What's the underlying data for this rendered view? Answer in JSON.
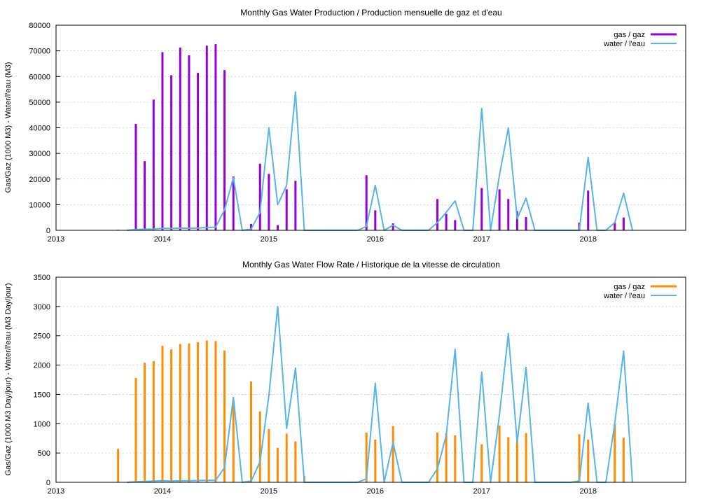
{
  "colors": {
    "gas_production": "#9400d3",
    "gas_rate": "#ff8c00",
    "water": "#56b4e9",
    "grid": "#c8c8c8",
    "frame": "#000000"
  },
  "chart_data": [
    {
      "type": "bar",
      "title": "Monthly Gas  Water Production / Production mensuelle de gaz et d'eau",
      "ylabel": "Gas/Gaz (1000 M3) - Water/l'eau (M3)",
      "xlabel": "",
      "xlim": [
        "2013-01-01",
        "2018-12-01"
      ],
      "ylim": [
        0,
        80000
      ],
      "yticks": [
        "0",
        "10000",
        "20000",
        "30000",
        "40000",
        "50000",
        "60000",
        "70000",
        "80000"
      ],
      "xticks": [
        "2013",
        "2014",
        "2015",
        "2016",
        "2017",
        "2018"
      ],
      "grid": true,
      "legend_position": "top-right",
      "series": [
        {
          "name": "gas / gaz",
          "style": "impulses",
          "x": [
            "2013-08-01",
            "2013-10-01",
            "2013-11-01",
            "2013-12-01",
            "2014-01-01",
            "2014-02-01",
            "2014-03-01",
            "2014-04-01",
            "2014-05-01",
            "2014-06-01",
            "2014-07-01",
            "2014-08-01",
            "2014-09-01",
            "2014-11-01",
            "2014-12-01",
            "2015-01-01",
            "2015-02-01",
            "2015-03-01",
            "2015-04-01",
            "2015-12-01",
            "2016-01-01",
            "2016-03-01",
            "2016-08-01",
            "2016-09-01",
            "2016-10-01",
            "2017-01-01",
            "2017-03-01",
            "2017-04-01",
            "2017-05-01",
            "2017-06-01",
            "2017-12-01",
            "2018-01-01",
            "2018-04-01",
            "2018-05-01"
          ],
          "values": [
            200,
            41500,
            27000,
            51000,
            69500,
            60500,
            71300,
            68300,
            61400,
            72000,
            72600,
            62500,
            21000,
            2500,
            26000,
            22000,
            2000,
            16000,
            19300,
            21500,
            7800,
            2700,
            12200,
            6400,
            4000,
            16500,
            16000,
            12200,
            7500,
            5200,
            3000,
            15500,
            3000,
            5000
          ]
        },
        {
          "name": "water / l'eau",
          "style": "line",
          "x": [
            "2013-09-01",
            "2013-10-01",
            "2013-11-01",
            "2013-12-01",
            "2014-01-01",
            "2014-02-01",
            "2014-03-01",
            "2014-04-01",
            "2014-05-01",
            "2014-06-01",
            "2014-07-01",
            "2014-08-01",
            "2014-09-01",
            "2014-10-01",
            "2014-11-01",
            "2014-12-01",
            "2015-01-01",
            "2015-02-01",
            "2015-03-01",
            "2015-04-01",
            "2015-05-01",
            "2015-11-01",
            "2015-12-01",
            "2016-01-01",
            "2016-02-01",
            "2016-03-01",
            "2016-04-01",
            "2016-07-01",
            "2016-08-01",
            "2016-09-01",
            "2016-10-01",
            "2016-11-01",
            "2016-12-01",
            "2017-01-01",
            "2017-02-01",
            "2017-03-01",
            "2017-04-01",
            "2017-05-01",
            "2017-06-01",
            "2017-07-01",
            "2017-11-01",
            "2017-12-01",
            "2018-01-01",
            "2018-02-01",
            "2018-03-01",
            "2018-04-01",
            "2018-05-01",
            "2018-06-01"
          ],
          "values": [
            0,
            300,
            400,
            500,
            800,
            700,
            900,
            800,
            900,
            1100,
            1200,
            8000,
            20500,
            0,
            500,
            7000,
            40000,
            10000,
            17500,
            54000,
            0,
            0,
            1500,
            17500,
            0,
            2000,
            0,
            0,
            3000,
            7000,
            11500,
            0,
            0,
            47500,
            0,
            21500,
            40000,
            4500,
            12500,
            0,
            0,
            0,
            28500,
            0,
            0,
            3000,
            14500,
            0
          ]
        }
      ]
    },
    {
      "type": "bar",
      "title": "Monthly Gas  Water Flow Rate / Historique de la vitesse de circulation",
      "ylabel": "Gas/Gaz (1000 M3 Day/jour) - Water/l'eau (M3 Day/jour)",
      "xlabel": "",
      "xlim": [
        "2013-01-01",
        "2018-12-01"
      ],
      "ylim": [
        0,
        3500
      ],
      "yticks": [
        "0",
        "500",
        "1000",
        "1500",
        "2000",
        "2500",
        "3000",
        "3500"
      ],
      "xticks": [
        "2013",
        "2014",
        "2015",
        "2016",
        "2017",
        "2018"
      ],
      "grid": true,
      "legend_position": "top-right",
      "series": [
        {
          "name": "gas / gaz",
          "style": "impulses",
          "x": [
            "2013-08-01",
            "2013-10-01",
            "2013-11-01",
            "2013-12-01",
            "2014-01-01",
            "2014-02-01",
            "2014-03-01",
            "2014-04-01",
            "2014-05-01",
            "2014-06-01",
            "2014-07-01",
            "2014-08-01",
            "2014-09-01",
            "2014-11-01",
            "2014-12-01",
            "2015-01-01",
            "2015-02-01",
            "2015-03-01",
            "2015-04-01",
            "2015-05-01",
            "2015-12-01",
            "2016-01-01",
            "2016-03-01",
            "2016-08-01",
            "2016-09-01",
            "2016-10-01",
            "2017-01-01",
            "2017-03-01",
            "2017-04-01",
            "2017-05-01",
            "2017-06-01",
            "2017-12-01",
            "2018-01-01",
            "2018-04-01",
            "2018-05-01"
          ],
          "values": [
            570,
            1780,
            2040,
            2070,
            2330,
            2270,
            2360,
            2370,
            2390,
            2420,
            2410,
            2250,
            1380,
            1720,
            1210,
            910,
            590,
            830,
            700,
            110,
            850,
            730,
            960,
            850,
            840,
            800,
            650,
            970,
            770,
            800,
            840,
            820,
            730,
            990,
            760
          ]
        },
        {
          "name": "water / l'eau",
          "style": "line",
          "x": [
            "2013-09-01",
            "2013-10-01",
            "2013-11-01",
            "2013-12-01",
            "2014-01-01",
            "2014-02-01",
            "2014-03-01",
            "2014-04-01",
            "2014-05-01",
            "2014-06-01",
            "2014-07-01",
            "2014-08-01",
            "2014-09-01",
            "2014-10-01",
            "2014-11-01",
            "2014-12-01",
            "2015-01-01",
            "2015-02-01",
            "2015-03-01",
            "2015-04-01",
            "2015-05-01",
            "2015-11-01",
            "2015-12-01",
            "2016-01-01",
            "2016-02-01",
            "2016-03-01",
            "2016-04-01",
            "2016-07-01",
            "2016-08-01",
            "2016-09-01",
            "2016-10-01",
            "2016-11-01",
            "2016-12-01",
            "2017-01-01",
            "2017-02-01",
            "2017-03-01",
            "2017-04-01",
            "2017-05-01",
            "2017-06-01",
            "2017-07-01",
            "2017-11-01",
            "2017-12-01",
            "2018-01-01",
            "2018-02-01",
            "2018-03-01",
            "2018-04-01",
            "2018-05-01",
            "2018-06-01"
          ],
          "values": [
            0,
            10,
            15,
            20,
            25,
            20,
            25,
            25,
            30,
            35,
            35,
            250,
            1450,
            0,
            20,
            350,
            1480,
            3000,
            920,
            1950,
            0,
            0,
            60,
            1690,
            0,
            680,
            0,
            0,
            230,
            800,
            2270,
            0,
            0,
            1880,
            0,
            1150,
            2540,
            680,
            1960,
            0,
            0,
            20,
            1350,
            0,
            0,
            1000,
            2240,
            0
          ]
        }
      ]
    }
  ]
}
